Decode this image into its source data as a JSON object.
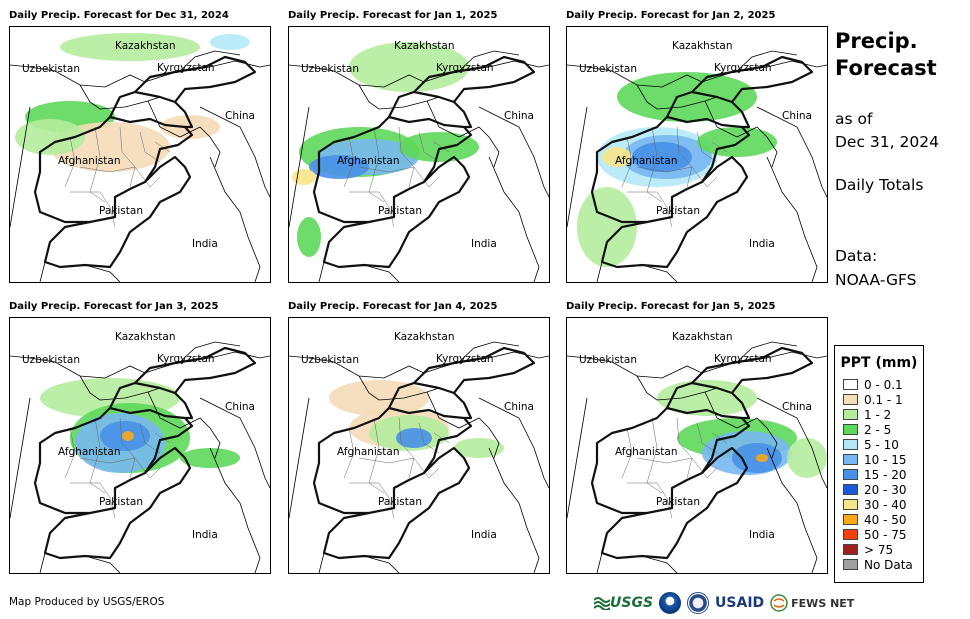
{
  "panels": [
    {
      "title": "Daily Precip. Forecast for Dec 31, 2024"
    },
    {
      "title": "Daily Precip. Forecast for Jan 1, 2025"
    },
    {
      "title": "Daily Precip. Forecast for Jan 2, 2025"
    },
    {
      "title": "Daily Precip. Forecast for Jan 3, 2025"
    },
    {
      "title": "Daily Precip. Forecast for Jan 4, 2025"
    },
    {
      "title": "Daily Precip. Forecast for Jan 5, 2025"
    }
  ],
  "map_labels": {
    "kazakhstan": "Kazakhstan",
    "uzbekistan": "Uzbekistan",
    "kyrgyzstan": "Kyrgyzstan",
    "china": "China",
    "afghanistan": "Afghanistan",
    "pakistan": "Pakistan",
    "india": "India"
  },
  "sidebar": {
    "title_line1": "Precip.",
    "title_line2": "Forecast",
    "asof_line1": "as of",
    "asof_line2": "Dec 31, 2024",
    "daily": "Daily Totals",
    "data_line1": "Data:",
    "data_line2": "NOAA-GFS"
  },
  "legend": {
    "title": "PPT (mm)",
    "items": [
      {
        "label": "0 - 0.1",
        "color": "#ffffff"
      },
      {
        "label": "0.1 - 1",
        "color": "#f5dcb8"
      },
      {
        "label": "1 - 2",
        "color": "#b4ec9c"
      },
      {
        "label": "2 - 5",
        "color": "#5ed85a"
      },
      {
        "label": "5 - 10",
        "color": "#b4e8f8"
      },
      {
        "label": "10 - 15",
        "color": "#78b8f0"
      },
      {
        "label": "15 - 20",
        "color": "#4890e8"
      },
      {
        "label": "20 - 30",
        "color": "#1a5ad8"
      },
      {
        "label": "30 - 40",
        "color": "#f8e488"
      },
      {
        "label": "40 - 50",
        "color": "#f8a818"
      },
      {
        "label": "50 - 75",
        "color": "#f04010"
      },
      {
        "label": "> 75",
        "color": "#a02020"
      },
      {
        "label": "No Data",
        "color": "#a0a0a0"
      }
    ]
  },
  "footer": {
    "credit": "Map Produced by USGS/EROS"
  },
  "logos": {
    "usgs": "USGS",
    "usaid": "USAID",
    "fews": "FEWS NET"
  }
}
